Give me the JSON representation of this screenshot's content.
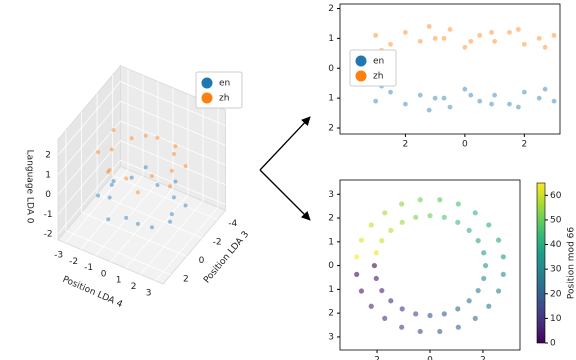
{
  "chart_data": [
    {
      "type": "scatter3d",
      "xlabel": "Position LDA 4",
      "ylabel": "Position LDA 3",
      "zlabel": "Language LDA 0",
      "xlim": [
        -3.5,
        3.5
      ],
      "ylim": [
        -5,
        3
      ],
      "zlim": [
        -2.3,
        2.8
      ],
      "xticks": [
        -3,
        -2,
        -1,
        0,
        1,
        2,
        3
      ],
      "yticks": [
        -4,
        -2,
        0,
        2
      ],
      "zticks": [
        -2,
        -1,
        0,
        1,
        2
      ],
      "legend": "upper right",
      "series": [
        {
          "name": "en",
          "color": "#1f77b4",
          "x": [
            2,
            2.4,
            1.41,
            0.99,
            0,
            -0.99,
            -1.41,
            -2.4,
            -2,
            -2.4,
            -1.41,
            -0.99,
            0,
            0.99,
            1.41,
            2.4
          ],
          "y": [
            -1,
            -0.01,
            0.41,
            1.4,
            1,
            1.4,
            0.41,
            -0.01,
            -1,
            -1.99,
            -2.41,
            -3.4,
            -3,
            -3.4,
            -2.41,
            -1.99
          ],
          "z": [
            -1.1,
            -0.9,
            -1.3,
            -0.8,
            -1,
            -1.2,
            -0.7,
            -1.1,
            -0.9,
            -1.3,
            -1,
            -0.8,
            -1.2,
            -0.9,
            -1.1,
            -1
          ]
        },
        {
          "name": "zh",
          "color": "#ff7f0e",
          "x": [
            2,
            2.4,
            1.41,
            0.99,
            0,
            -0.99,
            -1.41,
            -2.4,
            -2,
            -2.4,
            -1.41,
            -0.99,
            0,
            0.99,
            1.41,
            2.4
          ],
          "y": [
            -1,
            -0.01,
            0.41,
            1.4,
            1,
            1.4,
            0.41,
            -0.01,
            -1,
            -1.99,
            -2.41,
            -3.4,
            -3,
            -3.4,
            -2.41,
            -1.99
          ],
          "z": [
            1.1,
            0.9,
            1.3,
            0.8,
            1,
            1.2,
            0.7,
            1.1,
            0.9,
            1.3,
            1,
            0.8,
            1.2,
            0.9,
            1.1,
            1
          ]
        }
      ]
    },
    {
      "type": "scatter",
      "xlim": [
        -4.2,
        3.2
      ],
      "ylim": [
        -2.2,
        2.15
      ],
      "xticks": [
        {
          "value": -2,
          "label": "2"
        },
        0,
        2
      ],
      "yticks": [
        {
          "value": -2,
          "label": "2"
        },
        {
          "value": -1,
          "label": "1"
        },
        0,
        1,
        2
      ],
      "legend": "center left",
      "series": [
        {
          "name": "en",
          "color": "#1f77b4",
          "x": [
            -3,
            -2.5,
            -2,
            -1.5,
            -1,
            -0.5,
            0,
            0.5,
            1,
            1.5,
            2,
            2.5,
            3,
            -2.8,
            -1.2,
            0.2,
            1.8,
            2.7,
            -0.7,
            0.9
          ],
          "y": [
            -1.1,
            -0.8,
            -1.2,
            -0.9,
            -1,
            -1.3,
            -0.7,
            -1.1,
            -0.9,
            -1.2,
            -0.8,
            -1,
            -1.1,
            -0.6,
            -1.4,
            -0.9,
            -1.3,
            -0.7,
            -1,
            -1.2
          ]
        },
        {
          "name": "zh",
          "color": "#ff7f0e",
          "x": [
            -3,
            -2.5,
            -2,
            -1.5,
            -1,
            -0.5,
            0,
            0.5,
            1,
            1.5,
            2,
            2.5,
            3,
            -2.8,
            -1.2,
            0.2,
            1.8,
            2.7,
            -0.7,
            0.9
          ],
          "y": [
            1.1,
            0.8,
            1.2,
            0.9,
            1,
            1.3,
            0.7,
            1.1,
            0.9,
            1.2,
            0.8,
            1,
            1.1,
            0.6,
            1.4,
            0.9,
            1.3,
            0.7,
            1,
            1.2
          ]
        }
      ]
    },
    {
      "type": "scatter",
      "xlim": [
        -3.4,
        3.4
      ],
      "ylim": [
        -3.55,
        3.6
      ],
      "xticks": [
        {
          "value": -2,
          "label": "2"
        },
        0,
        2
      ],
      "yticks": [
        {
          "value": -3,
          "label": "3"
        },
        {
          "value": -2,
          "label": "2"
        },
        {
          "value": -1,
          "label": "1"
        },
        0,
        1,
        2,
        3
      ],
      "cmap": "viridis",
      "clim": [
        0,
        65
      ],
      "cticks": [
        0,
        10,
        20,
        30,
        40,
        50,
        60
      ],
      "clabel": "Position mod 66",
      "series": [
        {
          "x": [
            -2.1,
            -2.03,
            -1.82,
            -1.48,
            -1.05,
            -0.54,
            0,
            0.54,
            1.05,
            1.48,
            1.82,
            2.03,
            2.1,
            2.03,
            1.82,
            1.48,
            1.05,
            0.54,
            0,
            -0.54,
            -1.05,
            -1.48,
            -1.82,
            -2.03,
            -2.77,
            -2.59,
            -2.22,
            -1.71,
            -1.07,
            -0.37,
            0.37,
            1.07,
            1.71,
            2.22,
            2.59,
            2.77,
            2.77,
            2.59,
            2.22,
            1.71,
            1.07,
            0.37,
            -0.37,
            -1.07,
            -1.71,
            -2.22,
            -2.59,
            -2.77
          ],
          "y": [
            0,
            -0.54,
            -1.05,
            -1.48,
            -1.82,
            -2.03,
            -2.1,
            -2.03,
            -1.82,
            -1.48,
            -1.05,
            -0.54,
            0,
            0.54,
            1.05,
            1.48,
            1.82,
            2.03,
            2.1,
            2.03,
            1.82,
            1.48,
            1.05,
            0.54,
            -0.37,
            -1.07,
            -1.71,
            -2.22,
            -2.59,
            -2.77,
            -2.77,
            -2.59,
            -2.22,
            -1.71,
            -1.07,
            -0.37,
            0.37,
            1.07,
            1.71,
            2.22,
            2.59,
            2.77,
            2.77,
            2.59,
            2.22,
            1.71,
            1.07,
            0.37
          ],
          "c": [
            0,
            2.75,
            5.5,
            8.25,
            11,
            13.75,
            16.5,
            19.25,
            22,
            24.75,
            27.5,
            30.25,
            33,
            35.75,
            38.5,
            41.25,
            44,
            46.75,
            49.5,
            52.25,
            55,
            57.75,
            60.5,
            63.25,
            1.4,
            4.1,
            6.9,
            9.6,
            12.4,
            15.1,
            17.9,
            20.6,
            23.4,
            26.1,
            28.9,
            31.6,
            34.4,
            37.1,
            39.9,
            42.6,
            45.4,
            48.1,
            50.9,
            53.6,
            56.4,
            59.1,
            61.9,
            64.6
          ]
        }
      ]
    }
  ]
}
